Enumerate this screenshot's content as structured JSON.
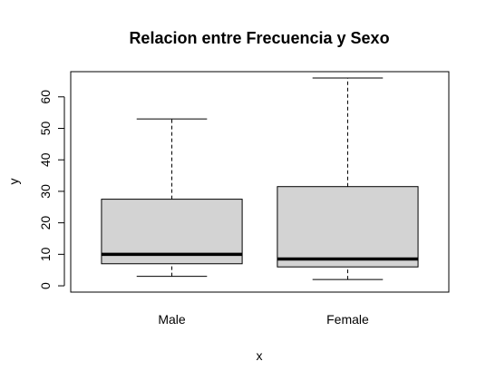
{
  "chart_data": {
    "type": "box",
    "title": "Relacion entre Frecuencia y Sexo",
    "xlabel": "x",
    "ylabel": "y",
    "categories": [
      "Male",
      "Female"
    ],
    "boxes": [
      {
        "category": "Male",
        "whisker_low": 3,
        "q1": 7,
        "median": 10,
        "q3": 27.5,
        "whisker_high": 53
      },
      {
        "category": "Female",
        "whisker_low": 2,
        "q1": 6,
        "median": 8.5,
        "q3": 31.5,
        "whisker_high": 66
      }
    ],
    "yticks": [
      0,
      10,
      20,
      30,
      40,
      50,
      60
    ],
    "ylim": [
      -2,
      68
    ],
    "box_fill": "#d3d3d3",
    "grid": false
  }
}
